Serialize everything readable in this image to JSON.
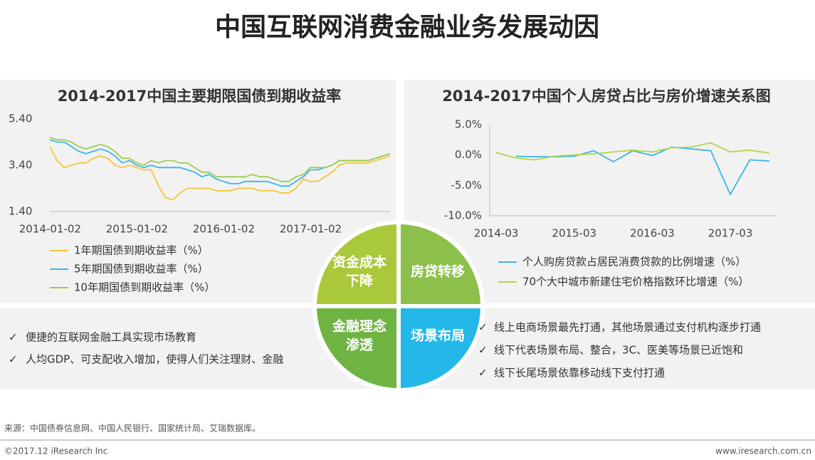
{
  "title": "中国互联网消费金融业务发展动因",
  "chart_data": [
    {
      "type": "line",
      "title": "2014-2017中国主要期限国债到期收益率",
      "x": [
        "2014-01",
        "2014-02",
        "2014-03",
        "2014-04",
        "2014-05",
        "2014-06",
        "2014-07",
        "2014-08",
        "2014-09",
        "2014-10",
        "2014-11",
        "2014-12",
        "2015-01",
        "2015-02",
        "2015-03",
        "2015-04",
        "2015-05",
        "2015-06",
        "2015-07",
        "2015-08",
        "2015-09",
        "2015-10",
        "2015-11",
        "2015-12",
        "2016-01",
        "2016-02",
        "2016-03",
        "2016-04",
        "2016-05",
        "2016-06",
        "2016-07",
        "2016-08",
        "2016-09",
        "2016-10",
        "2016-11",
        "2016-12",
        "2017-01",
        "2017-02",
        "2017-03",
        "2017-04",
        "2017-05",
        "2017-06",
        "2017-07",
        "2017-08",
        "2017-09",
        "2017-10",
        "2017-11",
        "2017-12"
      ],
      "xlim": [
        "2014-01",
        "2017-12"
      ],
      "xticks": [
        "2014-01-02",
        "2015-01-02",
        "2016-01-02",
        "2017-01-02"
      ],
      "ylim": [
        1.4,
        5.4
      ],
      "yticks": [
        {
          "value": 1.4,
          "label": "1.40"
        },
        {
          "value": 3.4,
          "label": "3.40"
        },
        {
          "value": 5.4,
          "label": "5.40"
        }
      ],
      "grid": false,
      "series": [
        {
          "name": "1年期国债到期收益率（%）",
          "color": "#f5c53a",
          "values": [
            4.2,
            3.6,
            3.3,
            3.4,
            3.5,
            3.5,
            3.7,
            3.8,
            3.7,
            3.4,
            3.3,
            3.4,
            3.3,
            3.2,
            3.2,
            2.5,
            2.0,
            1.9,
            2.2,
            2.4,
            2.4,
            2.4,
            2.4,
            2.3,
            2.3,
            2.3,
            2.4,
            2.4,
            2.4,
            2.3,
            2.3,
            2.3,
            2.2,
            2.2,
            2.4,
            2.8,
            2.7,
            2.7,
            2.9,
            3.1,
            3.4,
            3.5,
            3.5,
            3.5,
            3.5,
            3.6,
            3.7,
            3.8
          ]
        },
        {
          "name": "5年期国债到期收益率（%）",
          "color": "#3ab6e6",
          "values": [
            4.5,
            4.4,
            4.4,
            4.2,
            4.0,
            3.9,
            4.0,
            4.1,
            4.0,
            3.8,
            3.5,
            3.6,
            3.4,
            3.3,
            3.4,
            3.3,
            3.3,
            3.3,
            3.3,
            3.2,
            3.1,
            2.9,
            3.0,
            2.8,
            2.7,
            2.6,
            2.6,
            2.7,
            2.7,
            2.7,
            2.7,
            2.6,
            2.5,
            2.5,
            2.7,
            2.9,
            3.2,
            3.2,
            3.3,
            3.4,
            3.6,
            3.6,
            3.6,
            3.6,
            3.6,
            3.7,
            3.8,
            3.9
          ]
        },
        {
          "name": "10年期国债到期收益率（%）",
          "color": "#9dcb52",
          "values": [
            4.6,
            4.5,
            4.5,
            4.4,
            4.2,
            4.1,
            4.2,
            4.3,
            4.2,
            4.0,
            3.7,
            3.7,
            3.5,
            3.4,
            3.6,
            3.5,
            3.6,
            3.6,
            3.5,
            3.5,
            3.3,
            3.1,
            3.1,
            2.9,
            2.9,
            2.9,
            2.9,
            2.9,
            3.0,
            2.9,
            2.9,
            2.8,
            2.7,
            2.7,
            2.9,
            3.0,
            3.3,
            3.3,
            3.3,
            3.4,
            3.6,
            3.6,
            3.6,
            3.6,
            3.6,
            3.7,
            3.8,
            3.9
          ]
        }
      ]
    },
    {
      "type": "line",
      "title": "2014-2017中国个人房贷占比与房价增速关系图",
      "x": [
        "2014-03",
        "2014-06",
        "2014-09",
        "2014-12",
        "2015-03",
        "2015-06",
        "2015-09",
        "2015-12",
        "2016-03",
        "2016-06",
        "2016-09",
        "2016-12",
        "2017-03",
        "2017-06",
        "2017-09"
      ],
      "xlim": [
        "2014-02",
        "2017-10"
      ],
      "xticks": [
        "2014-03",
        "2015-03",
        "2016-03",
        "2017-03"
      ],
      "ylim": [
        -10,
        5
      ],
      "yticks": [
        {
          "value": 5,
          "label": "5.0%"
        },
        {
          "value": 0,
          "label": "0.0%"
        },
        {
          "value": -5,
          "label": "-5.0%"
        },
        {
          "value": -10,
          "label": "-10.0%"
        }
      ],
      "grid": false,
      "series": [
        {
          "name": "个人购房贷款占居民消费贷款的比例增速（%）",
          "color": "#3ab6e6",
          "values": [
            null,
            -0.2,
            -0.3,
            -0.3,
            -0.2,
            0.7,
            -1.1,
            0.7,
            -0.1,
            1.3,
            1.0,
            0.7,
            -6.5,
            -0.8,
            -1.0
          ]
        },
        {
          "name": "70个大中城市新建住宅价格指数环比增速（%）",
          "color": "#b9d24a",
          "values": [
            0.4,
            -0.5,
            -0.8,
            -0.2,
            0.0,
            0.2,
            0.5,
            0.8,
            0.5,
            1.2,
            1.3,
            2.0,
            0.5,
            0.8,
            0.3
          ]
        }
      ]
    }
  ],
  "center_labels": [
    [
      "资金成本",
      "下降"
    ],
    [
      "房贷转移"
    ],
    [
      "金融理念",
      "渗透"
    ],
    [
      "场景布局"
    ]
  ],
  "left_points": [
    "便捷的互联网金融工具实现市场教育",
    "人均GDP、可支配收入增加，使得人们关注理财、金融"
  ],
  "right_points": [
    "线上电商场景最先打通，其他场景通过支付机构逐步打通",
    "线下代表场景布局、整合，3C、医美等场景已近饱和",
    "线下长尾场景依靠移动线下支付打通"
  ],
  "check": "✓",
  "source": "来源：中国债券信息网、中国人民银行、国家统计局、艾瑞数据库。",
  "copyright": "©2017.12 iResearch Inc",
  "website": "www.iresearch.com.cn"
}
